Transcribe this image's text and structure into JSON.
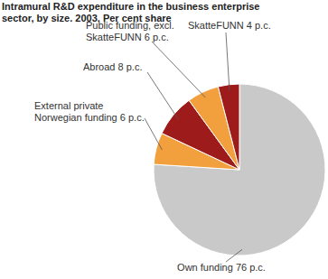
{
  "chart_data": {
    "type": "pie",
    "title": "Intramural R&D expenditure in the business enterprise sector, by size. 2003. Per cent share",
    "categories": [
      "Own funding",
      "External private Norwegian funding",
      "Abroad",
      "Public funding, excl. SkatteFUNN",
      "SkatteFUNN"
    ],
    "values": [
      76,
      6,
      8,
      6,
      4
    ],
    "value_labels": [
      "76 p.c.",
      "6 p.c.",
      "8 p.c.",
      "6 p.c.",
      "4 p.c."
    ],
    "colors": [
      "#c9c9c9",
      "#f2a03d",
      "#9e1b1b",
      "#f2a03d",
      "#9e1b1b"
    ],
    "data_labels": true
  }
}
